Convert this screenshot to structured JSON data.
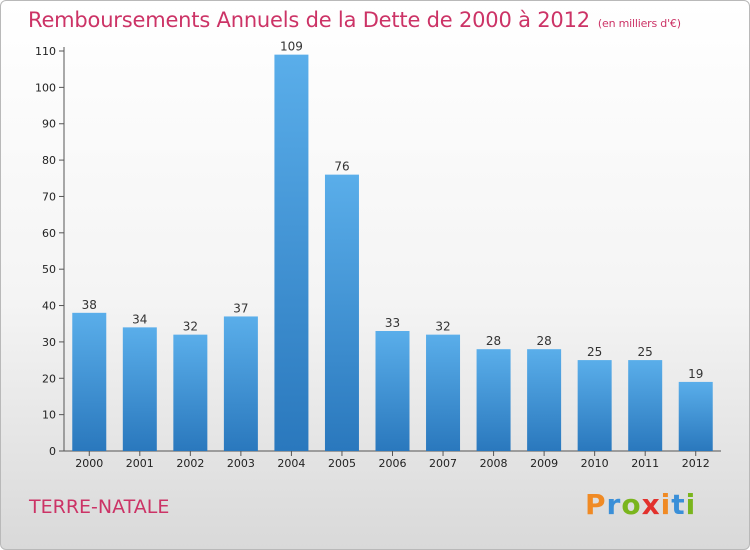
{
  "title": "Remboursements Annuels de la Dette de 2000 à 2012",
  "unit": "(en milliers d'€)",
  "commune": "TERRE-NATALE",
  "logo": {
    "letters": [
      "P",
      "r",
      "o",
      "x",
      "i",
      "t",
      "i"
    ],
    "colors": [
      "#f08a24",
      "#3a8fd8",
      "#7ab51d",
      "#e2312d",
      "#f08a24",
      "#3a8fd8",
      "#7ab51d"
    ]
  },
  "colors": {
    "title": "#cc3366",
    "bar_light": "#5aaeea",
    "bar_dark": "#2a78bd"
  },
  "chart_data": {
    "type": "bar",
    "title": "Remboursements Annuels de la Dette de 2000 à 2012",
    "xlabel": "",
    "ylabel": "",
    "categories": [
      "2000",
      "2001",
      "2002",
      "2003",
      "2004",
      "2005",
      "2006",
      "2007",
      "2008",
      "2009",
      "2010",
      "2011",
      "2012"
    ],
    "values": [
      38,
      34,
      32,
      37,
      109,
      76,
      33,
      32,
      28,
      28,
      25,
      25,
      19
    ],
    "ylim": [
      0,
      110
    ],
    "yticks": [
      0,
      10,
      20,
      30,
      40,
      50,
      60,
      70,
      80,
      90,
      100,
      110
    ],
    "grid": false,
    "legend": "none"
  }
}
